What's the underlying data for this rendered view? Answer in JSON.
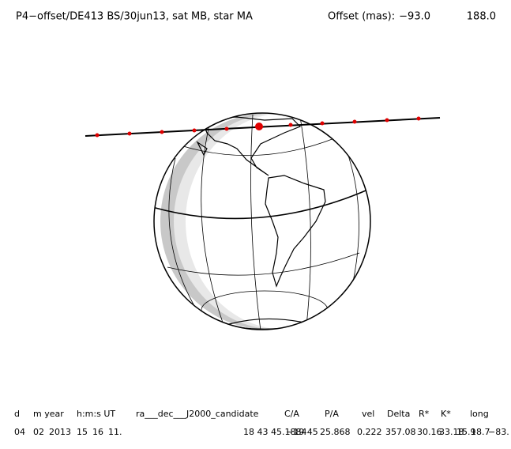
{
  "header": {
    "title": "P4−offset/DE413 BS/30jun13, sat MB, star MA",
    "offset_label": "Offset (mas):",
    "offset_values": [
      "−93.0",
      "188.0"
    ]
  },
  "table": {
    "headers": [
      "d",
      "m year",
      "h:m:s UT",
      "ra___dec___J2000_candidate",
      "C/A",
      "P/A",
      "vel",
      "Delta",
      "R*",
      "K*",
      "long"
    ],
    "row": [
      "04",
      "02",
      "2013",
      "15",
      "16",
      "11.",
      "18 43 45.1884",
      "−19 45",
      "25.868",
      "0.222",
      "357.08",
      "30.16",
      "33.18",
      "18.7",
      "15.9",
      "−83."
    ]
  }
}
